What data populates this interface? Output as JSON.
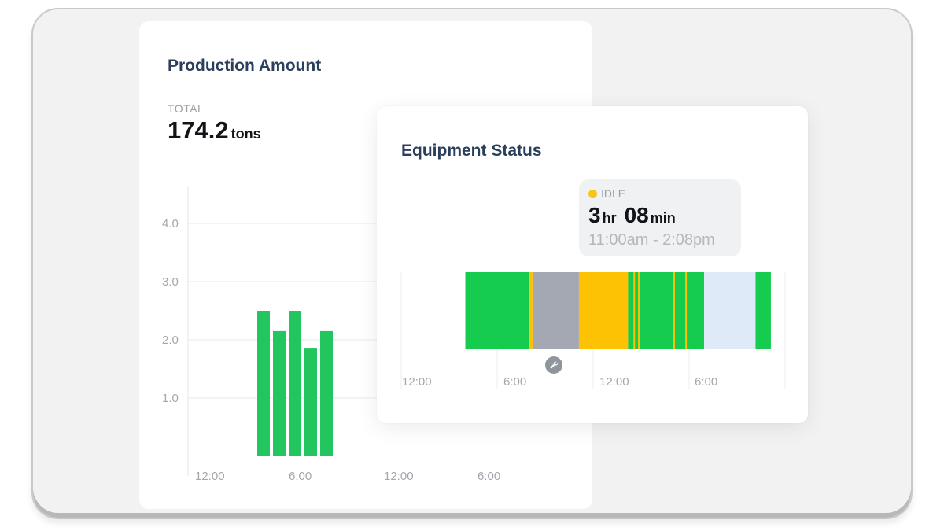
{
  "production": {
    "title": "Production Amount",
    "total_label": "TOTAL",
    "total_value": "174.2",
    "total_unit": "tons"
  },
  "equipment": {
    "title": "Equipment Status",
    "tooltip": {
      "status": "IDLE",
      "hours": "3",
      "hours_unit": "hr",
      "minutes": "08",
      "minutes_unit": "min",
      "range": "11:00am - 2:08pm",
      "status_color": "#f5c518"
    },
    "maintenance_icon": "wrench-icon"
  },
  "colors": {
    "running": "#16cc4e",
    "maintenance": "#a3a8b3",
    "idle": "#fcc203",
    "offline": "#dfeaf8"
  },
  "chart_data": [
    {
      "type": "bar",
      "x_tick_labels": [
        "12:00",
        "6:00",
        "12:00",
        "6:00"
      ],
      "y_ticks": [
        1.0,
        2.0,
        3.0,
        4.0
      ],
      "y_tick_labels": [
        "1.0",
        "2.0",
        "3.0",
        "4.0"
      ],
      "ylim": [
        0,
        4.5
      ],
      "grid": true,
      "bar_color": "#22c55e",
      "values": [
        2.5,
        2.15,
        2.5,
        1.85,
        2.15
      ]
    },
    {
      "type": "timeline",
      "x_tick_labels": [
        "12:00",
        "6:00",
        "12:00",
        "6:00"
      ],
      "segments": [
        {
          "status": "running",
          "start": 0.167,
          "end": 0.332
        },
        {
          "status": "idle",
          "start": 0.332,
          "end": 0.342
        },
        {
          "status": "maintenance",
          "start": 0.342,
          "end": 0.463
        },
        {
          "status": "idle",
          "start": 0.463,
          "end": 0.591
        },
        {
          "status": "running",
          "start": 0.591,
          "end": 0.789
        },
        {
          "status": "idle",
          "start": 0.605,
          "end": 0.609
        },
        {
          "status": "idle",
          "start": 0.617,
          "end": 0.621
        },
        {
          "status": "idle",
          "start": 0.709,
          "end": 0.713
        },
        {
          "status": "idle",
          "start": 0.74,
          "end": 0.744
        },
        {
          "status": "offline",
          "start": 0.789,
          "end": 0.923
        },
        {
          "status": "running",
          "start": 0.923,
          "end": 0.963
        }
      ]
    }
  ]
}
